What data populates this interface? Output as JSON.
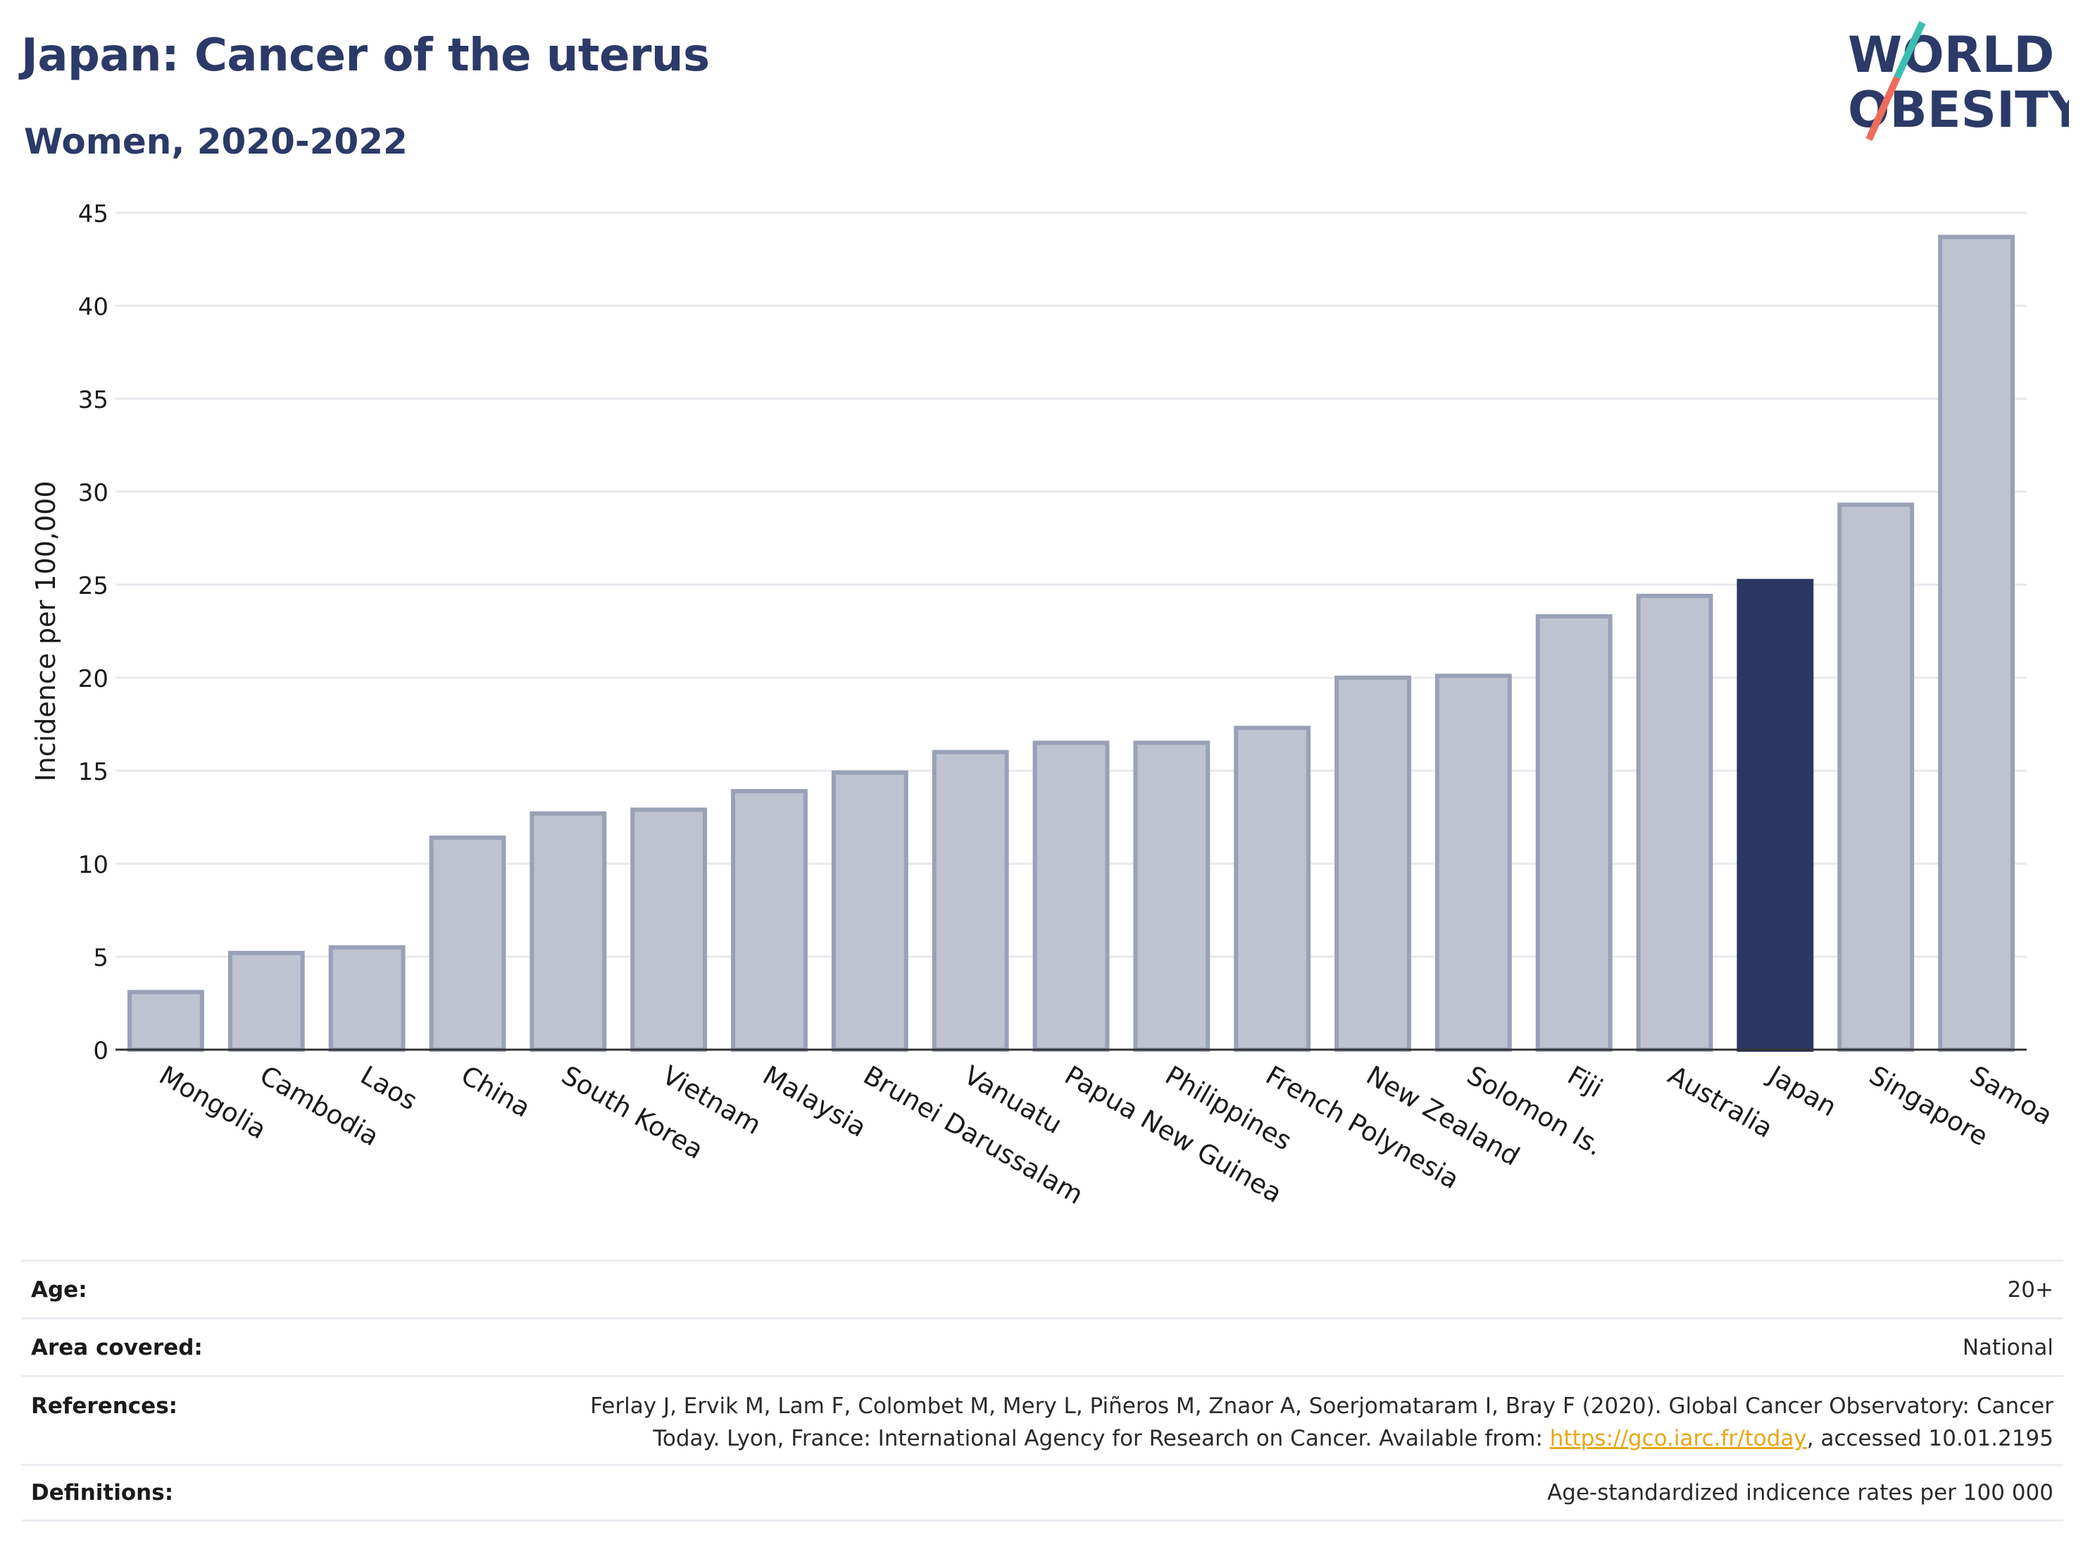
{
  "header": {
    "title": "Japan: Cancer of the uterus",
    "subtitle": "Women, 2020-2022"
  },
  "logo": {
    "text_line1": "WORLD",
    "text_line2": "OBESITY",
    "colors": {
      "text": "#2b3a67",
      "slash_top": "#3bbfb0",
      "slash_bottom": "#ef6b5a"
    }
  },
  "colors": {
    "bar": "#bfc2d0",
    "bar_border": "#9aa0b8",
    "highlight": "#2b3762",
    "grid": "#e8e8ee",
    "axis": "#333333"
  },
  "chart_data": {
    "type": "bar",
    "categories": [
      "Mongolia",
      "Cambodia",
      "Laos",
      "China",
      "South Korea",
      "Vietnam",
      "Malaysia",
      "Brunei Darussalam",
      "Vanuatu",
      "Papua New Guinea",
      "Philippines",
      "French Polynesia",
      "New Zealand",
      "Solomon Is.",
      "Fiji",
      "Australia",
      "Japan",
      "Singapore",
      "Samoa"
    ],
    "values": [
      3.1,
      5.2,
      5.5,
      11.4,
      12.7,
      12.9,
      13.9,
      14.9,
      16.0,
      16.5,
      16.5,
      17.3,
      20.0,
      20.1,
      23.3,
      24.4,
      25.2,
      29.3,
      43.7
    ],
    "highlight": "Japan",
    "ylabel": "Incidence per 100,000",
    "ylim": [
      0,
      45
    ],
    "yticks": [
      0,
      5,
      10,
      15,
      20,
      25,
      30,
      35,
      40,
      45
    ],
    "grid": true
  },
  "meta": {
    "age_label": "Age:",
    "age_value": "20+",
    "area_label": "Area covered:",
    "area_value": "National",
    "references_label": "References:",
    "references_line1": "Ferlay J, Ervik M, Lam F, Colombet M, Mery L, Piñeros M, Znaor A, Soerjomataram I, Bray F (2020). Global Cancer Observatory: Cancer",
    "references_line2_pre": "Today. Lyon, France: International Agency for Research on Cancer. Available from: ",
    "references_link": "https://gco.iarc.fr/today",
    "references_line2_post": ", accessed 10.01.2195",
    "definitions_label": "Definitions:",
    "definitions_value": "Age-standardized indicence rates per 100 000"
  }
}
